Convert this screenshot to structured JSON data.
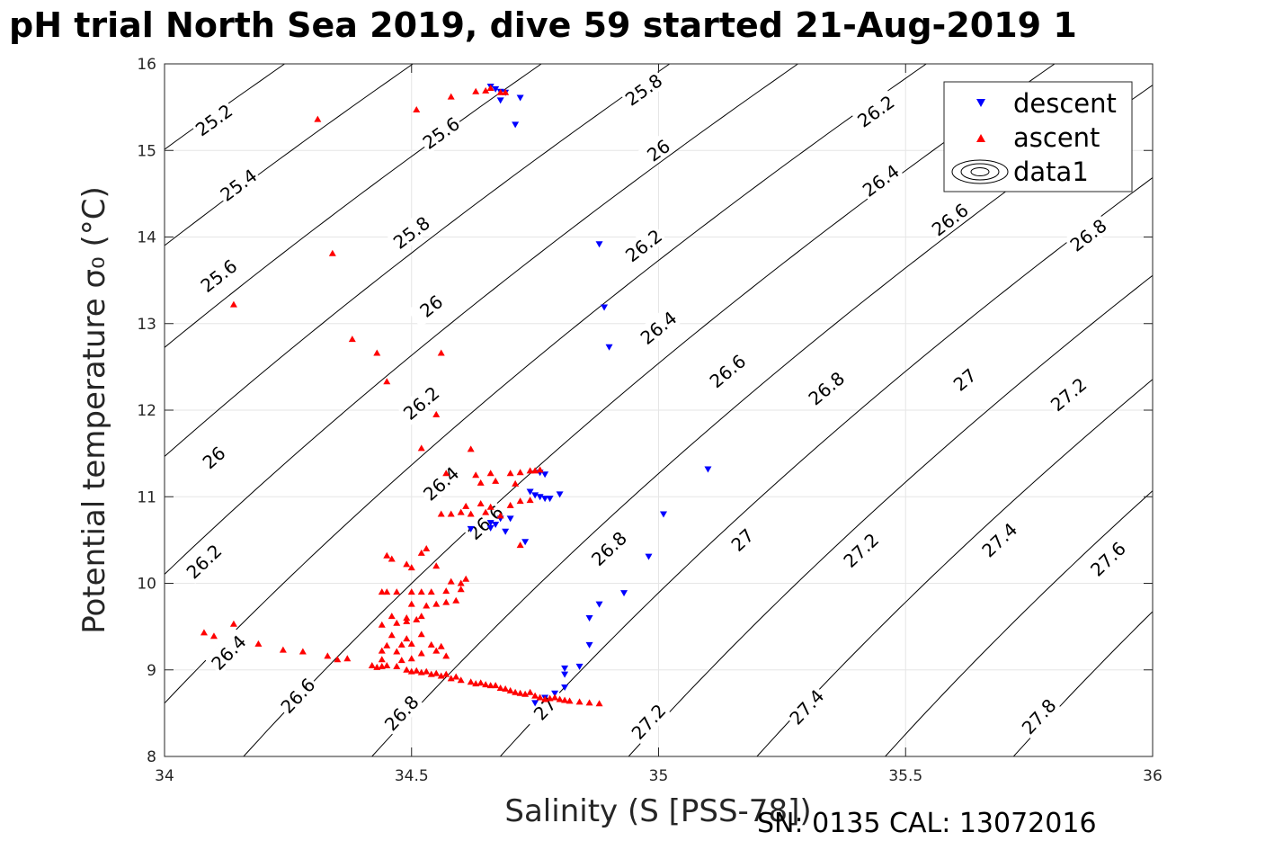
{
  "title": "pH trial North Sea 2019, dive 59 started 21-Aug-2019 1",
  "footer": "SN: 0135  CAL: 13072016",
  "chart_data": {
    "type": "scatter",
    "xlabel": "Salinity (S [PSS-78])",
    "ylabel": "Potential temperature σ₀ (°C)",
    "xlim": [
      34,
      36
    ],
    "ylim": [
      8,
      16
    ],
    "xticks": [
      34,
      34.5,
      35,
      35.5,
      36
    ],
    "yticks": [
      8,
      9,
      10,
      11,
      12,
      13,
      14,
      15,
      16
    ],
    "xtick_labels": [
      "34",
      "34.5",
      "35",
      "35.5",
      "36"
    ],
    "ytick_labels": [
      "8",
      "9",
      "10",
      "11",
      "12",
      "13",
      "14",
      "15",
      "16"
    ],
    "grid": true,
    "legend_position": "top-right",
    "contour_levels": [
      25.2,
      25.4,
      25.6,
      25.8,
      26,
      26.2,
      26.4,
      26.6,
      26.8,
      27,
      27.2,
      27.4,
      27.6,
      27.8
    ],
    "contour_labels": [
      {
        "text": "25.2",
        "x": 34.1,
        "y": 15.35
      },
      {
        "text": "25.4",
        "x": 34.15,
        "y": 14.6
      },
      {
        "text": "25.6",
        "x": 34.11,
        "y": 13.55
      },
      {
        "text": "26",
        "x": 34.1,
        "y": 11.45
      },
      {
        "text": "26.2",
        "x": 34.08,
        "y": 10.25
      },
      {
        "text": "26.4",
        "x": 34.13,
        "y": 9.2
      },
      {
        "text": "26.6",
        "x": 34.27,
        "y": 8.7
      },
      {
        "text": "26.8",
        "x": 34.48,
        "y": 8.5
      },
      {
        "text": "25.6",
        "x": 34.56,
        "y": 15.2
      },
      {
        "text": "25.8",
        "x": 34.5,
        "y": 14.05
      },
      {
        "text": "26",
        "x": 34.54,
        "y": 13.2
      },
      {
        "text": "26.2",
        "x": 34.52,
        "y": 12.08
      },
      {
        "text": "26.4",
        "x": 34.56,
        "y": 11.15
      },
      {
        "text": "26.6",
        "x": 34.65,
        "y": 10.7
      },
      {
        "text": "27",
        "x": 34.77,
        "y": 8.55
      },
      {
        "text": "25.8",
        "x": 34.97,
        "y": 15.7
      },
      {
        "text": "26",
        "x": 35.0,
        "y": 15.0
      },
      {
        "text": "26.2",
        "x": 34.97,
        "y": 13.9
      },
      {
        "text": "26.4",
        "x": 35.0,
        "y": 12.95
      },
      {
        "text": "26.6",
        "x": 35.14,
        "y": 12.45
      },
      {
        "text": "26.8",
        "x": 34.9,
        "y": 10.4
      },
      {
        "text": "27.2",
        "x": 34.98,
        "y": 8.4
      },
      {
        "text": "26.2",
        "x": 35.44,
        "y": 15.45
      },
      {
        "text": "26.4",
        "x": 35.45,
        "y": 14.65
      },
      {
        "text": "26.6",
        "x": 35.59,
        "y": 14.2
      },
      {
        "text": "26.8",
        "x": 35.34,
        "y": 12.25
      },
      {
        "text": "27",
        "x": 35.17,
        "y": 10.5
      },
      {
        "text": "27.2",
        "x": 35.41,
        "y": 10.38
      },
      {
        "text": "27.4",
        "x": 35.3,
        "y": 8.57
      },
      {
        "text": "26.8",
        "x": 35.87,
        "y": 14.02
      },
      {
        "text": "27",
        "x": 35.62,
        "y": 12.35
      },
      {
        "text": "27.2",
        "x": 35.83,
        "y": 12.18
      },
      {
        "text": "27.4",
        "x": 35.69,
        "y": 10.5
      },
      {
        "text": "27.6",
        "x": 35.91,
        "y": 10.28
      },
      {
        "text": "27.8",
        "x": 35.77,
        "y": 8.46
      }
    ],
    "series": [
      {
        "name": "descent",
        "marker": "triangle-down",
        "color": "#0000ff",
        "points": [
          [
            34.66,
            15.74
          ],
          [
            34.67,
            15.71
          ],
          [
            34.68,
            15.68
          ],
          [
            34.69,
            15.67
          ],
          [
            34.68,
            15.58
          ],
          [
            34.72,
            15.61
          ],
          [
            34.71,
            15.3
          ],
          [
            34.88,
            13.92
          ],
          [
            34.89,
            13.19
          ],
          [
            34.9,
            12.73
          ],
          [
            35.1,
            11.32
          ],
          [
            34.76,
            11.28
          ],
          [
            34.77,
            11.26
          ],
          [
            34.74,
            11.06
          ],
          [
            34.75,
            11.02
          ],
          [
            34.76,
            11.0
          ],
          [
            34.77,
            10.98
          ],
          [
            34.78,
            10.98
          ],
          [
            34.8,
            11.03
          ],
          [
            34.68,
            10.75
          ],
          [
            34.7,
            10.75
          ],
          [
            34.66,
            10.7
          ],
          [
            34.67,
            10.68
          ],
          [
            34.66,
            10.64
          ],
          [
            34.69,
            10.6
          ],
          [
            34.62,
            10.63
          ],
          [
            34.73,
            10.48
          ],
          [
            35.01,
            10.8
          ],
          [
            34.98,
            10.31
          ],
          [
            34.93,
            9.89
          ],
          [
            34.88,
            9.76
          ],
          [
            34.86,
            9.6
          ],
          [
            34.86,
            9.29
          ],
          [
            34.84,
            9.04
          ],
          [
            34.81,
            9.02
          ],
          [
            34.81,
            8.95
          ],
          [
            34.81,
            8.8
          ],
          [
            34.79,
            8.73
          ],
          [
            34.77,
            8.68
          ],
          [
            34.75,
            8.62
          ]
        ]
      },
      {
        "name": "ascent",
        "marker": "triangle-up",
        "color": "#ff0000",
        "points": [
          [
            34.31,
            15.36
          ],
          [
            34.51,
            15.47
          ],
          [
            34.58,
            15.62
          ],
          [
            34.63,
            15.68
          ],
          [
            34.65,
            15.69
          ],
          [
            34.66,
            15.72
          ],
          [
            34.68,
            15.67
          ],
          [
            34.69,
            15.67
          ],
          [
            34.34,
            13.81
          ],
          [
            34.14,
            13.22
          ],
          [
            34.38,
            12.82
          ],
          [
            34.43,
            12.66
          ],
          [
            34.56,
            12.66
          ],
          [
            34.45,
            12.33
          ],
          [
            34.55,
            11.95
          ],
          [
            34.52,
            11.56
          ],
          [
            34.62,
            11.55
          ],
          [
            34.57,
            11.27
          ],
          [
            34.63,
            11.25
          ],
          [
            34.66,
            11.27
          ],
          [
            34.7,
            11.27
          ],
          [
            34.72,
            11.28
          ],
          [
            34.74,
            11.3
          ],
          [
            34.75,
            11.3
          ],
          [
            34.76,
            11.31
          ],
          [
            34.64,
            11.16
          ],
          [
            34.67,
            11.18
          ],
          [
            34.71,
            11.15
          ],
          [
            34.61,
            10.89
          ],
          [
            34.64,
            10.92
          ],
          [
            34.66,
            10.88
          ],
          [
            34.7,
            10.9
          ],
          [
            34.72,
            10.95
          ],
          [
            34.74,
            10.96
          ],
          [
            34.56,
            10.8
          ],
          [
            34.58,
            10.8
          ],
          [
            34.6,
            10.82
          ],
          [
            34.62,
            10.8
          ],
          [
            34.65,
            10.82
          ],
          [
            34.68,
            10.78
          ],
          [
            34.72,
            10.44
          ],
          [
            34.52,
            10.35
          ],
          [
            34.53,
            10.4
          ],
          [
            34.45,
            10.32
          ],
          [
            34.46,
            10.28
          ],
          [
            34.49,
            10.22
          ],
          [
            34.5,
            10.18
          ],
          [
            34.55,
            10.2
          ],
          [
            34.58,
            10.02
          ],
          [
            34.6,
            10.0
          ],
          [
            34.61,
            10.05
          ],
          [
            34.44,
            9.9
          ],
          [
            34.45,
            9.9
          ],
          [
            34.47,
            9.9
          ],
          [
            34.5,
            9.9
          ],
          [
            34.52,
            9.9
          ],
          [
            34.54,
            9.9
          ],
          [
            34.57,
            9.91
          ],
          [
            34.6,
            9.93
          ],
          [
            34.5,
            9.76
          ],
          [
            34.53,
            9.74
          ],
          [
            34.55,
            9.76
          ],
          [
            34.57,
            9.78
          ],
          [
            34.59,
            9.8
          ],
          [
            34.46,
            9.62
          ],
          [
            34.49,
            9.6
          ],
          [
            34.52,
            9.62
          ],
          [
            34.44,
            9.52
          ],
          [
            34.47,
            9.54
          ],
          [
            34.49,
            9.56
          ],
          [
            34.51,
            9.58
          ],
          [
            34.46,
            9.4
          ],
          [
            34.49,
            9.36
          ],
          [
            34.52,
            9.41
          ],
          [
            34.45,
            9.28
          ],
          [
            34.48,
            9.29
          ],
          [
            34.5,
            9.3
          ],
          [
            34.54,
            9.29
          ],
          [
            34.56,
            9.27
          ],
          [
            34.44,
            9.22
          ],
          [
            34.47,
            9.21
          ],
          [
            34.52,
            9.19
          ],
          [
            34.55,
            9.22
          ],
          [
            34.57,
            9.16
          ],
          [
            34.44,
            9.12
          ],
          [
            34.48,
            9.11
          ],
          [
            34.5,
            9.13
          ],
          [
            34.08,
            9.43
          ],
          [
            34.1,
            9.39
          ],
          [
            34.14,
            9.53
          ],
          [
            34.19,
            9.3
          ],
          [
            34.24,
            9.23
          ],
          [
            34.28,
            9.21
          ],
          [
            34.33,
            9.16
          ],
          [
            34.35,
            9.12
          ],
          [
            34.37,
            9.13
          ],
          [
            34.42,
            9.05
          ],
          [
            34.43,
            9.03
          ],
          [
            34.44,
            9.04
          ],
          [
            34.45,
            9.05
          ],
          [
            34.47,
            9.04
          ],
          [
            34.49,
            9.0
          ],
          [
            34.5,
            8.98
          ],
          [
            34.51,
            8.99
          ],
          [
            34.52,
            8.97
          ],
          [
            34.53,
            8.98
          ],
          [
            34.54,
            8.95
          ],
          [
            34.55,
            8.96
          ],
          [
            34.56,
            8.93
          ],
          [
            34.57,
            8.95
          ],
          [
            34.58,
            8.9
          ],
          [
            34.59,
            8.92
          ],
          [
            34.6,
            8.88
          ],
          [
            34.62,
            8.86
          ],
          [
            34.63,
            8.84
          ],
          [
            34.64,
            8.85
          ],
          [
            34.65,
            8.83
          ],
          [
            34.66,
            8.82
          ],
          [
            34.67,
            8.82
          ],
          [
            34.68,
            8.79
          ],
          [
            34.69,
            8.78
          ],
          [
            34.7,
            8.76
          ],
          [
            34.71,
            8.74
          ],
          [
            34.72,
            8.73
          ],
          [
            34.73,
            8.72
          ],
          [
            34.74,
            8.74
          ],
          [
            34.75,
            8.7
          ],
          [
            34.76,
            8.68
          ],
          [
            34.77,
            8.66
          ],
          [
            34.78,
            8.67
          ],
          [
            34.79,
            8.68
          ],
          [
            34.8,
            8.66
          ],
          [
            34.81,
            8.65
          ],
          [
            34.82,
            8.64
          ],
          [
            34.84,
            8.63
          ],
          [
            34.86,
            8.62
          ],
          [
            34.88,
            8.61
          ]
        ]
      }
    ],
    "legend": [
      {
        "label": "descent",
        "key": "descent"
      },
      {
        "label": "ascent",
        "key": "ascent"
      },
      {
        "label": "data1",
        "key": "contour"
      }
    ]
  }
}
